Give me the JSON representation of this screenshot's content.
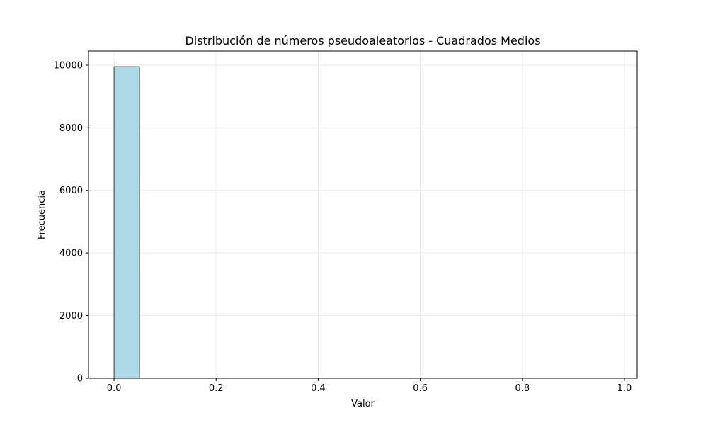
{
  "chart_data": {
    "type": "bar",
    "title": "Distribución de números pseudoaleatorios - Cuadrados Medios",
    "xlabel": "Valor",
    "ylabel": "Frecuencia",
    "xlim": [
      -0.05,
      1.025
    ],
    "ylim": [
      0,
      10450
    ],
    "xticks": [
      0.0,
      0.2,
      0.4,
      0.6,
      0.8,
      1.0
    ],
    "xtick_labels": [
      "0.0",
      "0.2",
      "0.4",
      "0.6",
      "0.8",
      "1.0"
    ],
    "yticks": [
      0,
      2000,
      4000,
      6000,
      8000,
      10000
    ],
    "ytick_labels": [
      "0",
      "2000",
      "4000",
      "6000",
      "8000",
      "10000"
    ],
    "grid": true,
    "bins": [
      {
        "x0": 0.0,
        "x1": 0.05,
        "count": 9950
      },
      {
        "x0": 0.05,
        "x1": 0.1,
        "count": 0
      },
      {
        "x0": 0.1,
        "x1": 0.15,
        "count": 0
      },
      {
        "x0": 0.15,
        "x1": 0.2,
        "count": 0
      },
      {
        "x0": 0.2,
        "x1": 0.25,
        "count": 0
      },
      {
        "x0": 0.25,
        "x1": 0.3,
        "count": 0
      },
      {
        "x0": 0.3,
        "x1": 0.35,
        "count": 0
      },
      {
        "x0": 0.35,
        "x1": 0.4,
        "count": 0
      },
      {
        "x0": 0.4,
        "x1": 0.45,
        "count": 0
      },
      {
        "x0": 0.45,
        "x1": 0.5,
        "count": 0
      },
      {
        "x0": 0.5,
        "x1": 0.55,
        "count": 0
      },
      {
        "x0": 0.55,
        "x1": 0.6,
        "count": 0
      },
      {
        "x0": 0.6,
        "x1": 0.65,
        "count": 0
      },
      {
        "x0": 0.65,
        "x1": 0.7,
        "count": 0
      },
      {
        "x0": 0.7,
        "x1": 0.75,
        "count": 0
      },
      {
        "x0": 0.75,
        "x1": 0.8,
        "count": 0
      },
      {
        "x0": 0.8,
        "x1": 0.85,
        "count": 0
      },
      {
        "x0": 0.85,
        "x1": 0.9,
        "count": 0
      },
      {
        "x0": 0.9,
        "x1": 0.95,
        "count": 0
      },
      {
        "x0": 0.95,
        "x1": 1.0,
        "count": 0
      }
    ],
    "bar_color": "#add8e6",
    "bar_edge_color": "#000000",
    "grid_color": "#e6e6e6"
  }
}
